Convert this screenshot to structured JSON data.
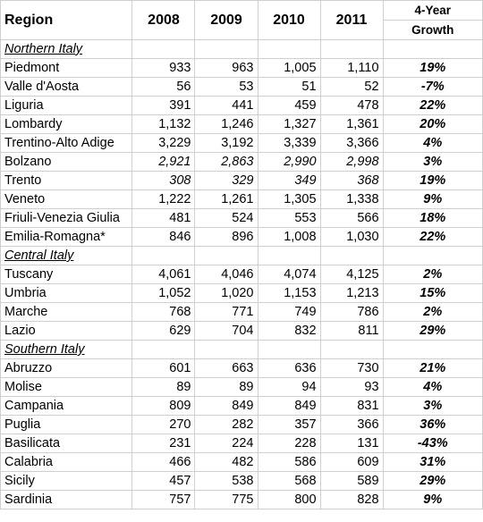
{
  "header": {
    "region": "Region",
    "years": [
      "2008",
      "2009",
      "2010",
      "2011"
    ],
    "growth_line1": "4-Year",
    "growth_line2": "Growth"
  },
  "sections": [
    {
      "label": "Northern Italy",
      "rows": [
        {
          "region": "Piedmont",
          "v2008": "933",
          "v2009": "963",
          "v2010": "1,005",
          "v2011": "1,110",
          "growth": "19%",
          "italic": false
        },
        {
          "region": "Valle d'Aosta",
          "v2008": "56",
          "v2009": "53",
          "v2010": "51",
          "v2011": "52",
          "growth": "-7%",
          "italic": false
        },
        {
          "region": "Liguria",
          "v2008": "391",
          "v2009": "441",
          "v2010": "459",
          "v2011": "478",
          "growth": "22%",
          "italic": false
        },
        {
          "region": "Lombardy",
          "v2008": "1,132",
          "v2009": "1,246",
          "v2010": "1,327",
          "v2011": "1,361",
          "growth": "20%",
          "italic": false
        },
        {
          "region": "Trentino-Alto Adige",
          "v2008": "3,229",
          "v2009": "3,192",
          "v2010": "3,339",
          "v2011": "3,366",
          "growth": "4%",
          "italic": false
        },
        {
          "region": "Bolzano",
          "v2008": "2,921",
          "v2009": "2,863",
          "v2010": "2,990",
          "v2011": "2,998",
          "growth": "3%",
          "italic": true
        },
        {
          "region": "Trento",
          "v2008": "308",
          "v2009": "329",
          "v2010": "349",
          "v2011": "368",
          "growth": "19%",
          "italic": true
        },
        {
          "region": "Veneto",
          "v2008": "1,222",
          "v2009": "1,261",
          "v2010": "1,305",
          "v2011": "1,338",
          "growth": "9%",
          "italic": false
        },
        {
          "region": "Friuli-Venezia Giulia",
          "v2008": "481",
          "v2009": "524",
          "v2010": "553",
          "v2011": "566",
          "growth": "18%",
          "italic": false
        },
        {
          "region": "Emilia-Romagna*",
          "v2008": "846",
          "v2009": "896",
          "v2010": "1,008",
          "v2011": "1,030",
          "growth": "22%",
          "italic": false
        }
      ]
    },
    {
      "label": "Central Italy",
      "rows": [
        {
          "region": "Tuscany",
          "v2008": "4,061",
          "v2009": "4,046",
          "v2010": "4,074",
          "v2011": "4,125",
          "growth": "2%",
          "italic": false
        },
        {
          "region": "Umbria",
          "v2008": "1,052",
          "v2009": "1,020",
          "v2010": "1,153",
          "v2011": "1,213",
          "growth": "15%",
          "italic": false
        },
        {
          "region": "Marche",
          "v2008": "768",
          "v2009": "771",
          "v2010": "749",
          "v2011": "786",
          "growth": "2%",
          "italic": false
        },
        {
          "region": "Lazio",
          "v2008": "629",
          "v2009": "704",
          "v2010": "832",
          "v2011": "811",
          "growth": "29%",
          "italic": false
        }
      ]
    },
    {
      "label": "Southern Italy",
      "rows": [
        {
          "region": "Abruzzo",
          "v2008": "601",
          "v2009": "663",
          "v2010": "636",
          "v2011": "730",
          "growth": "21%",
          "italic": false
        },
        {
          "region": "Molise",
          "v2008": "89",
          "v2009": "89",
          "v2010": "94",
          "v2011": "93",
          "growth": "4%",
          "italic": false
        },
        {
          "region": "Campania",
          "v2008": "809",
          "v2009": "849",
          "v2010": "849",
          "v2011": "831",
          "growth": "3%",
          "italic": false
        },
        {
          "region": "Puglia",
          "v2008": "270",
          "v2009": "282",
          "v2010": "357",
          "v2011": "366",
          "growth": "36%",
          "italic": false
        },
        {
          "region": "Basilicata",
          "v2008": "231",
          "v2009": "224",
          "v2010": "228",
          "v2011": "131",
          "growth": "-43%",
          "italic": false
        },
        {
          "region": "Calabria",
          "v2008": "466",
          "v2009": "482",
          "v2010": "586",
          "v2011": "609",
          "growth": "31%",
          "italic": false
        },
        {
          "region": "Sicily",
          "v2008": "457",
          "v2009": "538",
          "v2010": "568",
          "v2011": "589",
          "growth": "29%",
          "italic": false
        },
        {
          "region": "Sardinia",
          "v2008": "757",
          "v2009": "775",
          "v2010": "800",
          "v2011": "828",
          "growth": "9%",
          "italic": false
        }
      ]
    }
  ]
}
